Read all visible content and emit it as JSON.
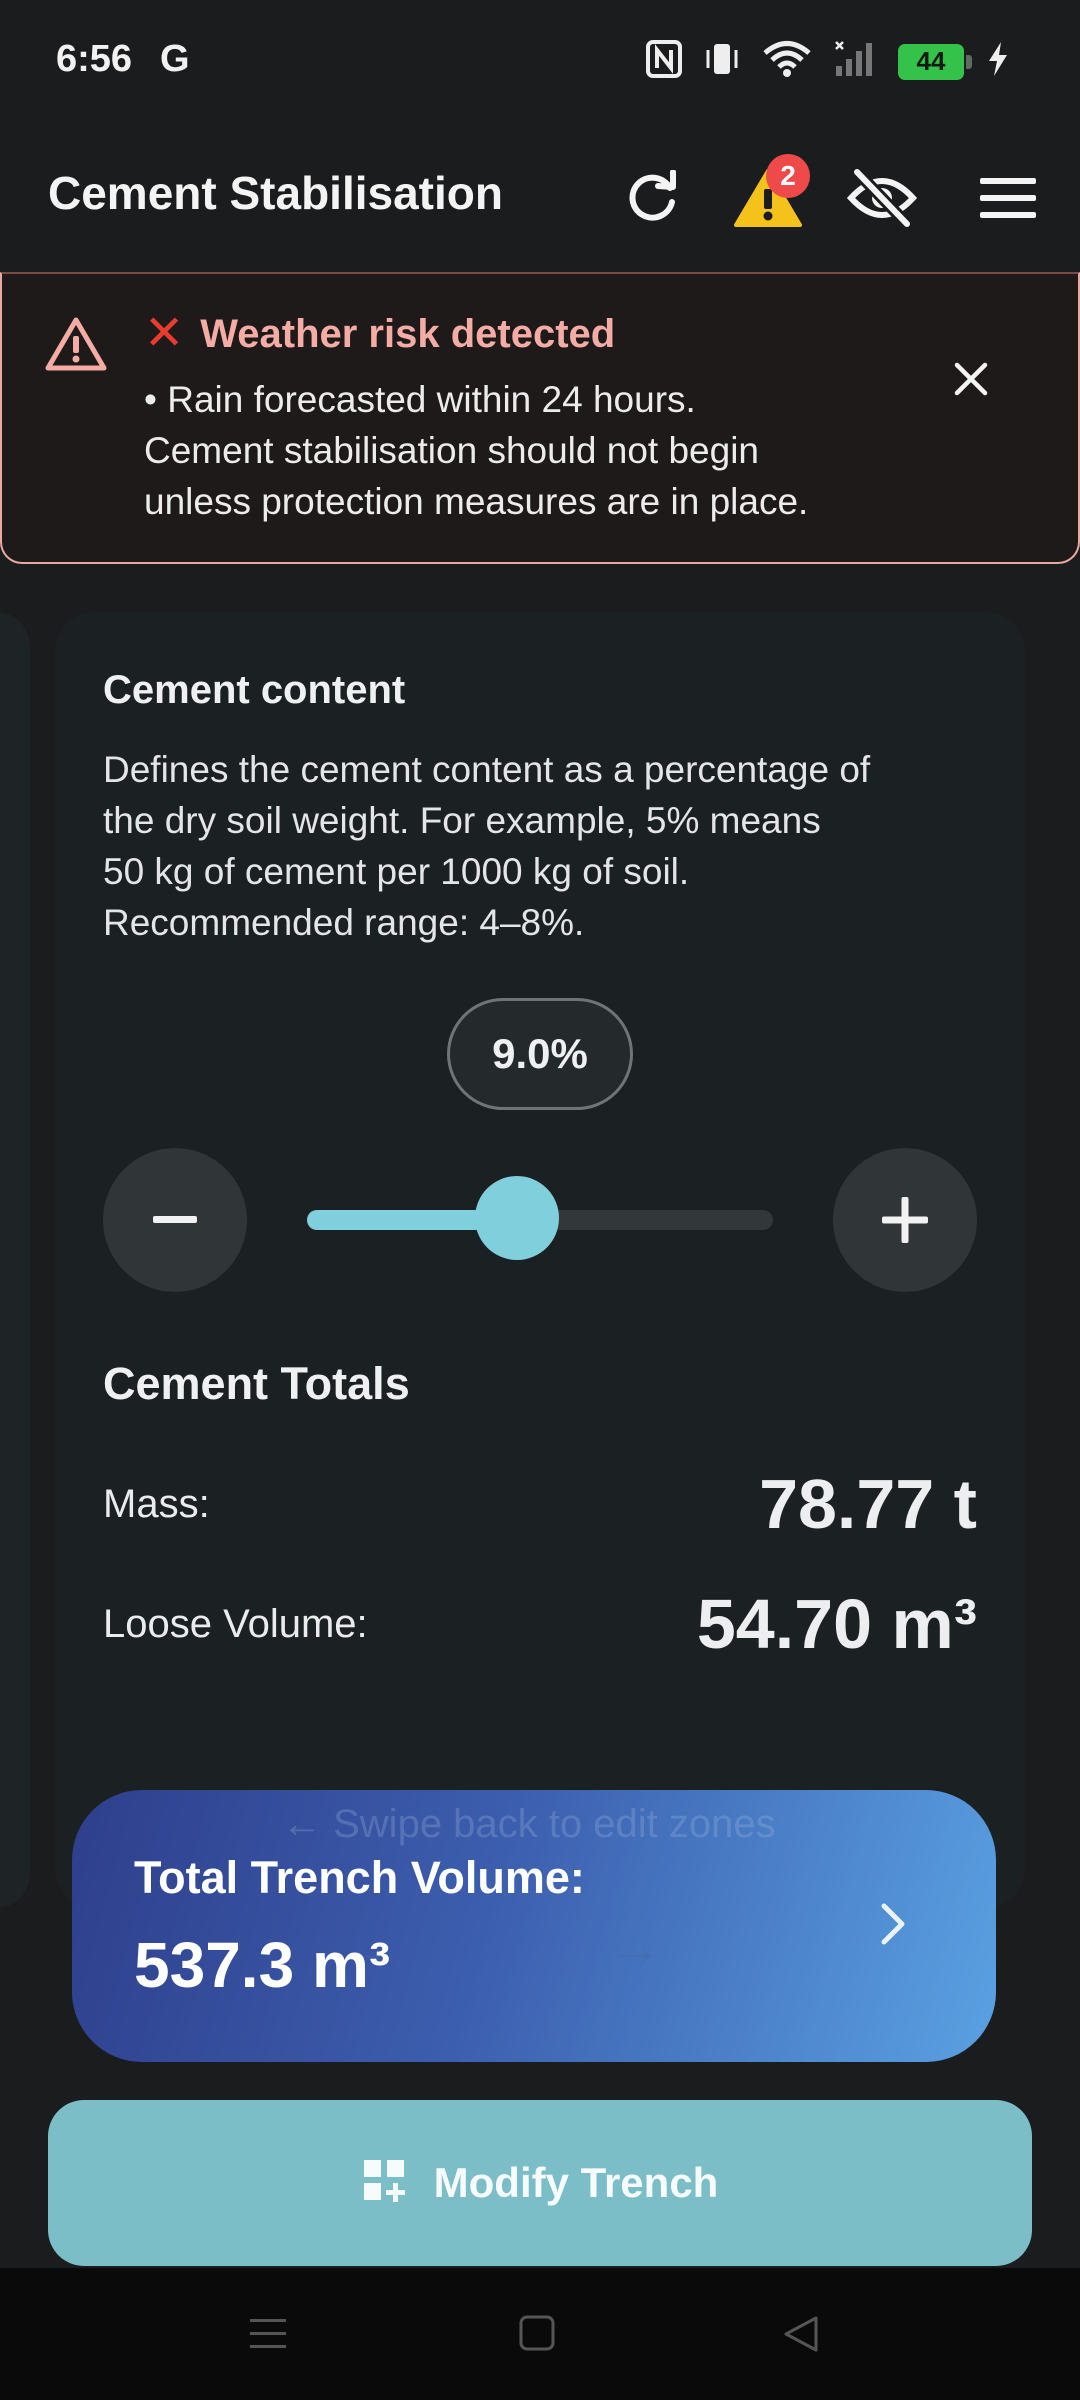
{
  "status_bar": {
    "time": "6:56",
    "carrier_glyph": "G",
    "battery_level": "44",
    "icons": [
      "nfc-icon",
      "vibrate-icon",
      "wifi-icon",
      "cell-signal-icon",
      "battery-icon",
      "charging-icon"
    ]
  },
  "app_bar": {
    "title": "Cement Stabilisation",
    "warning_badge_count": "2",
    "actions": [
      "refresh-icon",
      "warning-icon",
      "visibility-off-icon",
      "menu-icon"
    ]
  },
  "weather_alert": {
    "title": "Weather risk detected",
    "line1": "• Rain forecasted within 24 hours.",
    "line2": "Cement stabilisation should not begin",
    "line3": "unless protection measures are in place."
  },
  "cement_card": {
    "title": "Cement content",
    "description_lines": [
      "Defines the cement content as a percentage of",
      "the dry soil weight. For example, 5% means",
      "50 kg of cement per 1000 kg of soil.",
      "Recommended range: 4–8%."
    ],
    "percent_display": "9.0%",
    "slider_fraction": 0.45,
    "totals_title": "Cement Totals",
    "mass_label": "Mass:",
    "mass_value": "78.77 t",
    "volume_label": "Loose Volume:",
    "volume_value": "54.70 m³"
  },
  "ghost": {
    "swipe_hint": "← Swipe back to edit zones",
    "left_arrow": "←",
    "right_arrow": "→"
  },
  "total_volume": {
    "label": "Total Trench Volume:",
    "value": "537.3 m³"
  },
  "modify_button": {
    "label": "Modify Trench"
  },
  "colors": {
    "accent": "#80cfdc",
    "alert_text": "#f4aca4",
    "alert_border": "#e9a9a0",
    "badge": "#ee4a4a",
    "warning": "#f5c21b",
    "button": "#7bbec8"
  }
}
